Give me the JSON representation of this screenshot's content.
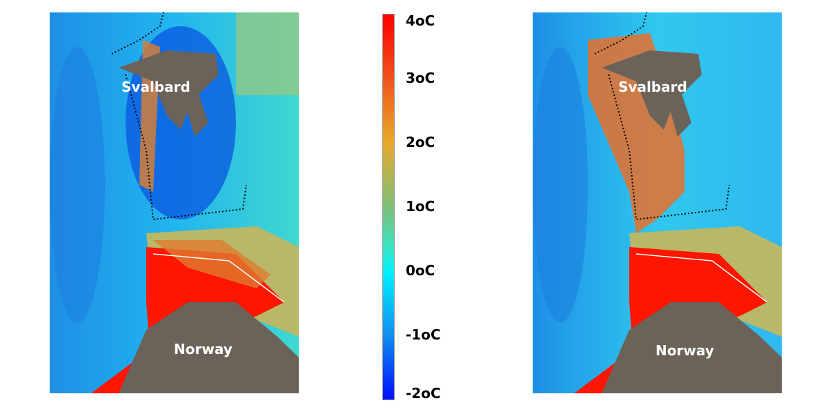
{
  "maps": [
    {
      "id": "left",
      "labels": {
        "north": "Svalbard",
        "south": "Norway"
      }
    },
    {
      "id": "right",
      "labels": {
        "north": "Svalbard",
        "south": "Norway"
      }
    }
  ],
  "colorbar": {
    "min": -2,
    "max": 4,
    "unit": "°C",
    "ticks": [
      "4oC",
      "3oC",
      "2oC",
      "1oC",
      "0oC",
      "-1oC",
      "-2oC"
    ],
    "colors": {
      "high": "#ff0000",
      "mid": "#00f0ff",
      "low": "#0010ff"
    }
  },
  "land_color": "#6b635a"
}
